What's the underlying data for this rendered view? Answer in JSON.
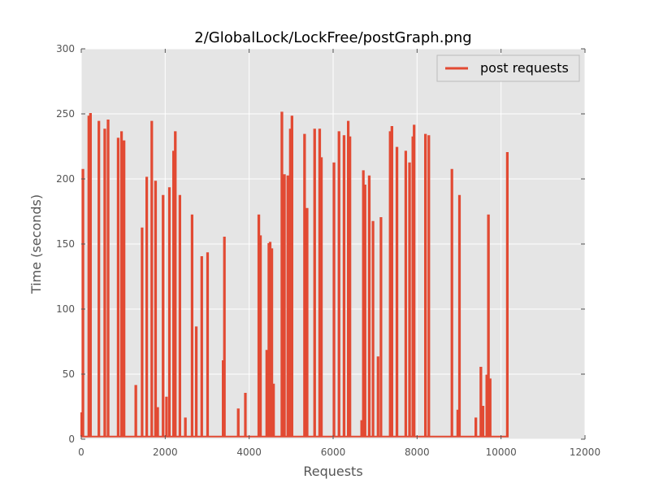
{
  "chart_data": {
    "type": "line",
    "title": "2/GlobalLock/LockFree/postGraph.png",
    "xlabel": "Requests",
    "ylabel": "Time (seconds)",
    "xlim": [
      0,
      12000
    ],
    "ylim": [
      0,
      300
    ],
    "xticks": [
      "0",
      "2000",
      "4000",
      "6000",
      "8000",
      "10000",
      "12000"
    ],
    "yticks": [
      "0",
      "50",
      "100",
      "150",
      "200",
      "250",
      "300"
    ],
    "grid": true,
    "legend_position": "top-right",
    "baseline": 2,
    "colors": {
      "series": "#e24a33",
      "plot_background": "#e5e5e5",
      "grid": "#ffffff"
    },
    "series": [
      {
        "name": "post requests",
        "spikes": [
          [
            5,
            20
          ],
          [
            40,
            207
          ],
          [
            180,
            248
          ],
          [
            220,
            250
          ],
          [
            420,
            244
          ],
          [
            560,
            238
          ],
          [
            640,
            245
          ],
          [
            880,
            231
          ],
          [
            960,
            236
          ],
          [
            1020,
            229
          ],
          [
            1300,
            41
          ],
          [
            1450,
            162
          ],
          [
            1560,
            201
          ],
          [
            1680,
            244
          ],
          [
            1770,
            198
          ],
          [
            1820,
            24
          ],
          [
            1950,
            187
          ],
          [
            2030,
            32
          ],
          [
            2100,
            193
          ],
          [
            2200,
            221
          ],
          [
            2240,
            236
          ],
          [
            2350,
            187
          ],
          [
            2480,
            16
          ],
          [
            2640,
            172
          ],
          [
            2740,
            86
          ],
          [
            2870,
            140
          ],
          [
            3010,
            143
          ],
          [
            3380,
            60
          ],
          [
            3410,
            155
          ],
          [
            3740,
            23
          ],
          [
            3910,
            35
          ],
          [
            4230,
            172
          ],
          [
            4270,
            156
          ],
          [
            4420,
            68
          ],
          [
            4470,
            150
          ],
          [
            4500,
            151
          ],
          [
            4540,
            146
          ],
          [
            4580,
            42
          ],
          [
            4780,
            251
          ],
          [
            4840,
            203
          ],
          [
            4920,
            202
          ],
          [
            4980,
            238
          ],
          [
            5020,
            248
          ],
          [
            5320,
            234
          ],
          [
            5380,
            177
          ],
          [
            5560,
            238
          ],
          [
            5680,
            238
          ],
          [
            5720,
            216
          ],
          [
            6020,
            212
          ],
          [
            6140,
            236
          ],
          [
            6260,
            233
          ],
          [
            6360,
            244
          ],
          [
            6400,
            232
          ],
          [
            6680,
            14
          ],
          [
            6720,
            206
          ],
          [
            6760,
            195
          ],
          [
            6860,
            202
          ],
          [
            6950,
            167
          ],
          [
            7070,
            63
          ],
          [
            7140,
            170
          ],
          [
            7360,
            236
          ],
          [
            7400,
            240
          ],
          [
            7520,
            224
          ],
          [
            7730,
            221
          ],
          [
            7820,
            212
          ],
          [
            7900,
            232
          ],
          [
            7930,
            241
          ],
          [
            8200,
            234
          ],
          [
            8280,
            233
          ],
          [
            8830,
            207
          ],
          [
            8970,
            22
          ],
          [
            9010,
            187
          ],
          [
            9400,
            16
          ],
          [
            9520,
            55
          ],
          [
            9570,
            25
          ],
          [
            9660,
            49
          ],
          [
            9700,
            172
          ],
          [
            9740,
            46
          ],
          [
            10150,
            220
          ]
        ]
      }
    ]
  }
}
